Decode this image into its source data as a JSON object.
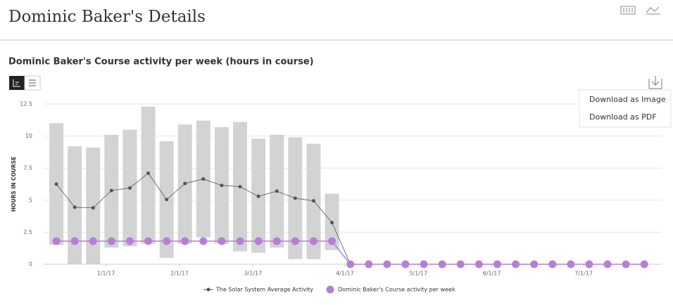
{
  "header": {
    "title": "Dominic Baker's Details"
  },
  "menu": {
    "items": [
      "Download as Image",
      "Download as PDF"
    ]
  },
  "chart_data": {
    "type": "line",
    "title": "Dominic Baker's Course activity per week (hours in course)",
    "y_label": "HOURS IN COURSE",
    "categories": [
      null,
      null,
      null,
      "1/1/17",
      null,
      null,
      null,
      "2/1/17",
      null,
      null,
      null,
      "3/1/17",
      null,
      null,
      null,
      null,
      "4/1/17",
      null,
      null,
      null,
      "5/1/17",
      null,
      null,
      null,
      "6/1/17",
      null,
      null,
      null,
      null,
      "7/1/17",
      null,
      null,
      null
    ],
    "ranges": {
      "color": "#d3d3d3",
      "low": [
        1.5,
        0,
        0,
        1.3,
        1.4,
        1.6,
        0.5,
        1.6,
        2.1,
        1.6,
        1.0,
        0.9,
        1.3,
        0.4,
        0.4,
        1.1
      ],
      "high": [
        11.0,
        9.2,
        9.1,
        10.1,
        10.5,
        12.3,
        9.6,
        10.9,
        11.2,
        10.7,
        11.1,
        9.8,
        10.1,
        9.9,
        9.4,
        5.5
      ]
    },
    "series": [
      {
        "name": "The Solar System Average Activity",
        "color": "#555555",
        "values": [
          6.25,
          4.45,
          4.4,
          5.75,
          5.95,
          7.1,
          5.05,
          6.3,
          6.65,
          6.15,
          6.05,
          5.3,
          5.7,
          5.15,
          4.95,
          3.25,
          0,
          null,
          null,
          null,
          null,
          null,
          null,
          null,
          null,
          null,
          null,
          null,
          null,
          null,
          null,
          null,
          null
        ]
      },
      {
        "name": "Dominic Baker's Course activity per week",
        "color": "#b57fd6",
        "values": [
          1.8,
          1.8,
          1.8,
          1.8,
          1.8,
          1.8,
          1.8,
          1.8,
          1.8,
          1.8,
          1.8,
          1.8,
          1.8,
          1.8,
          1.8,
          1.8,
          0,
          0,
          0,
          0,
          0,
          0,
          0,
          0,
          0,
          0,
          0,
          0,
          0,
          0,
          0,
          0,
          0
        ]
      }
    ],
    "ylim": [
      0,
      12.5
    ],
    "yticks": [
      0,
      2.5,
      5,
      7.5,
      10,
      12.5
    ],
    "grid": true
  }
}
